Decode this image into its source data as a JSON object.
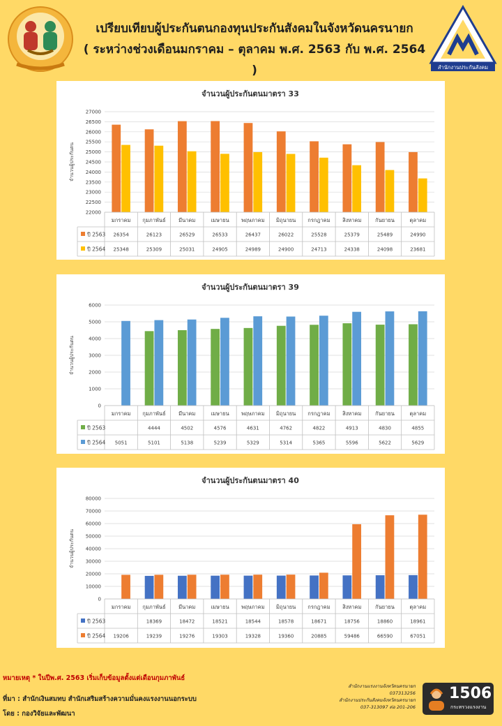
{
  "header": {
    "title_line1": "เปรียบเทียบผู้ประกันตนกองทุนประกันสังคมในจังหวัดนครนายก",
    "title_line2": "( ระหว่างช่วงเดือนมกราคม – ตุลาคม พ.ศ. 2563 กับ พ.ศ. 2564 )",
    "right_logo_caption": "สำนักงานประกันสังคม"
  },
  "chart_data": [
    {
      "type": "bar",
      "title": "จำนวนผู้ประกันตนมาตรา 33",
      "ylabel": "จำนวนผู้ประกันตน",
      "ylim": [
        22000,
        27000
      ],
      "yticks": [
        "22000",
        "22500",
        "23000",
        "23500",
        "24000",
        "24500",
        "25000",
        "25500",
        "26000",
        "26500",
        "27000"
      ],
      "categories": [
        "มกราคม",
        "กุมภาพันธ์",
        "มีนาคม",
        "เมษายน",
        "พฤษภาคม",
        "มิถุนายน",
        "กรกฎาคม",
        "สิงหาคม",
        "กันยายน",
        "ตุลาคม"
      ],
      "series": [
        {
          "name": "ปี 2563",
          "color": "#ED7D31",
          "values": [
            26354,
            26123,
            26529,
            26533,
            26437,
            26022,
            25528,
            25379,
            25489,
            24990
          ]
        },
        {
          "name": "ปี 2564",
          "color": "#FFC000",
          "values": [
            25348,
            25309,
            25031,
            24905,
            24989,
            24900,
            24713,
            24338,
            24098,
            23681
          ]
        }
      ]
    },
    {
      "type": "bar",
      "title": "จำนวนผู้ประกันตนมาตรา 39",
      "ylabel": "จำนวนผู้ประกันตน",
      "ylim": [
        0,
        6000
      ],
      "yticks": [
        "0",
        "1000",
        "2000",
        "3000",
        "4000",
        "5000",
        "6000"
      ],
      "categories": [
        "มกราคม",
        "กุมภาพันธ์",
        "มีนาคม",
        "เมษายน",
        "พฤษภาคม",
        "มิถุนายน",
        "กรกฎาคม",
        "สิงหาคม",
        "กันยายน",
        "ตุลาคม"
      ],
      "series": [
        {
          "name": "ปี 2563",
          "color": "#70AD47",
          "values": [
            null,
            4444,
            4502,
            4576,
            4631,
            4762,
            4822,
            4913,
            4830,
            4855
          ]
        },
        {
          "name": "ปี 2564",
          "color": "#5B9BD5",
          "values": [
            5051,
            5101,
            5138,
            5239,
            5329,
            5314,
            5365,
            5596,
            5622,
            5629
          ]
        }
      ]
    },
    {
      "type": "bar",
      "title": "จำนวนผู้ประกันตนมาตรา 40",
      "ylabel": "จำนวนผู้ประกันตน",
      "ylim": [
        0,
        80000
      ],
      "yticks": [
        "0",
        "10000",
        "20000",
        "30000",
        "40000",
        "50000",
        "60000",
        "70000",
        "80000"
      ],
      "categories": [
        "มกราคม",
        "กุมภาพันธ์",
        "มีนาคม",
        "เมษายน",
        "พฤษภาคม",
        "มิถุนายน",
        "กรกฎาคม",
        "สิงหาคม",
        "กันยายน",
        "ตุลาคม"
      ],
      "series": [
        {
          "name": "ปี 2563",
          "color": "#4472C4",
          "values": [
            null,
            18369,
            18472,
            18521,
            18544,
            18578,
            18671,
            18756,
            18860,
            18961
          ]
        },
        {
          "name": "ปี 2564",
          "color": "#ED7D31",
          "values": [
            19206,
            19239,
            19276,
            19303,
            19328,
            19360,
            20885,
            59486,
            66590,
            67051
          ]
        }
      ]
    }
  ],
  "footer": {
    "note": "หมายเหตุ * ในปีพ.ศ. 2563 เริ่มเก็บข้อมูลตั้งแต่เดือนกุมภาพันธ์",
    "source": "ที่มา : สำนักเงินสมทบ สำนักเสริมสร้างความมั่นคงแรงงานนอกระบบ",
    "by": "โดย : กองวิจัยและพัฒนา",
    "contact_line1": "สำนักงานแรงงานจังหวัดนครนายก",
    "contact_line2": "037313256",
    "contact_line3": "สำนักงานประกันสังคมจังหวัดนครนายก",
    "contact_line4": "037-313097 ต่อ 201-206",
    "hotline_number": "1506",
    "hotline_caption": "กระทรวงแรงงาน"
  }
}
